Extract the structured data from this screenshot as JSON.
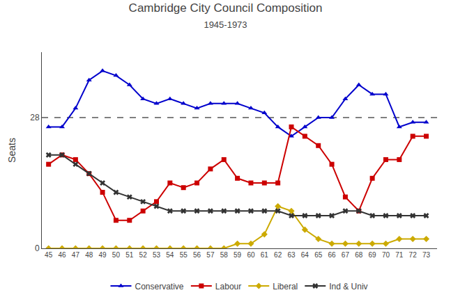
{
  "chart_data": {
    "type": "line",
    "title": "Cambridge City Council Composition",
    "subtitle": "1945-1973",
    "ylabel": "Seats",
    "x": [
      45,
      46,
      47,
      48,
      49,
      50,
      51,
      52,
      53,
      54,
      55,
      56,
      57,
      58,
      59,
      60,
      61,
      62,
      63,
      64,
      65,
      66,
      67,
      68,
      69,
      70,
      71,
      72,
      73
    ],
    "series": [
      {
        "name": "Conservative",
        "color": "#0000cc",
        "marker": "triangle-up",
        "values": [
          26,
          26,
          30,
          36,
          38,
          37,
          35,
          32,
          31,
          32,
          31,
          30,
          31,
          31,
          31,
          30,
          29,
          26,
          24,
          26,
          28,
          28,
          32,
          35,
          33,
          33,
          26,
          27,
          27
        ]
      },
      {
        "name": "Labour",
        "color": "#cc0000",
        "marker": "square",
        "values": [
          18,
          20,
          19,
          16,
          12,
          6,
          6,
          8,
          10,
          14,
          13,
          14,
          17,
          19,
          15,
          14,
          14,
          14,
          26,
          24,
          22,
          18,
          11,
          8,
          15,
          19,
          19,
          24,
          24
        ]
      },
      {
        "name": "Liberal",
        "color": "#ccaa00",
        "marker": "diamond",
        "values": [
          0,
          0,
          0,
          0,
          0,
          0,
          0,
          0,
          0,
          0,
          0,
          0,
          0,
          0,
          1,
          1,
          3,
          9,
          8,
          4,
          2,
          1,
          1,
          1,
          1,
          1,
          2,
          2,
          2
        ]
      },
      {
        "name": "Ind & Univ",
        "color": "#333333",
        "marker": "x",
        "values": [
          20,
          20,
          18,
          16,
          14,
          12,
          11,
          10,
          9,
          8,
          8,
          8,
          8,
          8,
          8,
          8,
          8,
          8,
          7,
          7,
          7,
          7,
          8,
          8,
          7,
          7,
          7,
          7,
          7
        ]
      }
    ],
    "hlines": [
      {
        "y": 28,
        "line_style": "dashed",
        "color": "#000000"
      }
    ],
    "xlim": [
      44.5,
      73.8
    ],
    "xticks": [
      45,
      46,
      47,
      48,
      49,
      50,
      51,
      52,
      53,
      54,
      55,
      56,
      57,
      58,
      59,
      60,
      61,
      62,
      63,
      64,
      65,
      66,
      67,
      68,
      69,
      70,
      71,
      72,
      73
    ],
    "ylim": [
      0,
      42
    ],
    "yticks": [
      0,
      28
    ],
    "grid": false,
    "legend": "bottom"
  }
}
